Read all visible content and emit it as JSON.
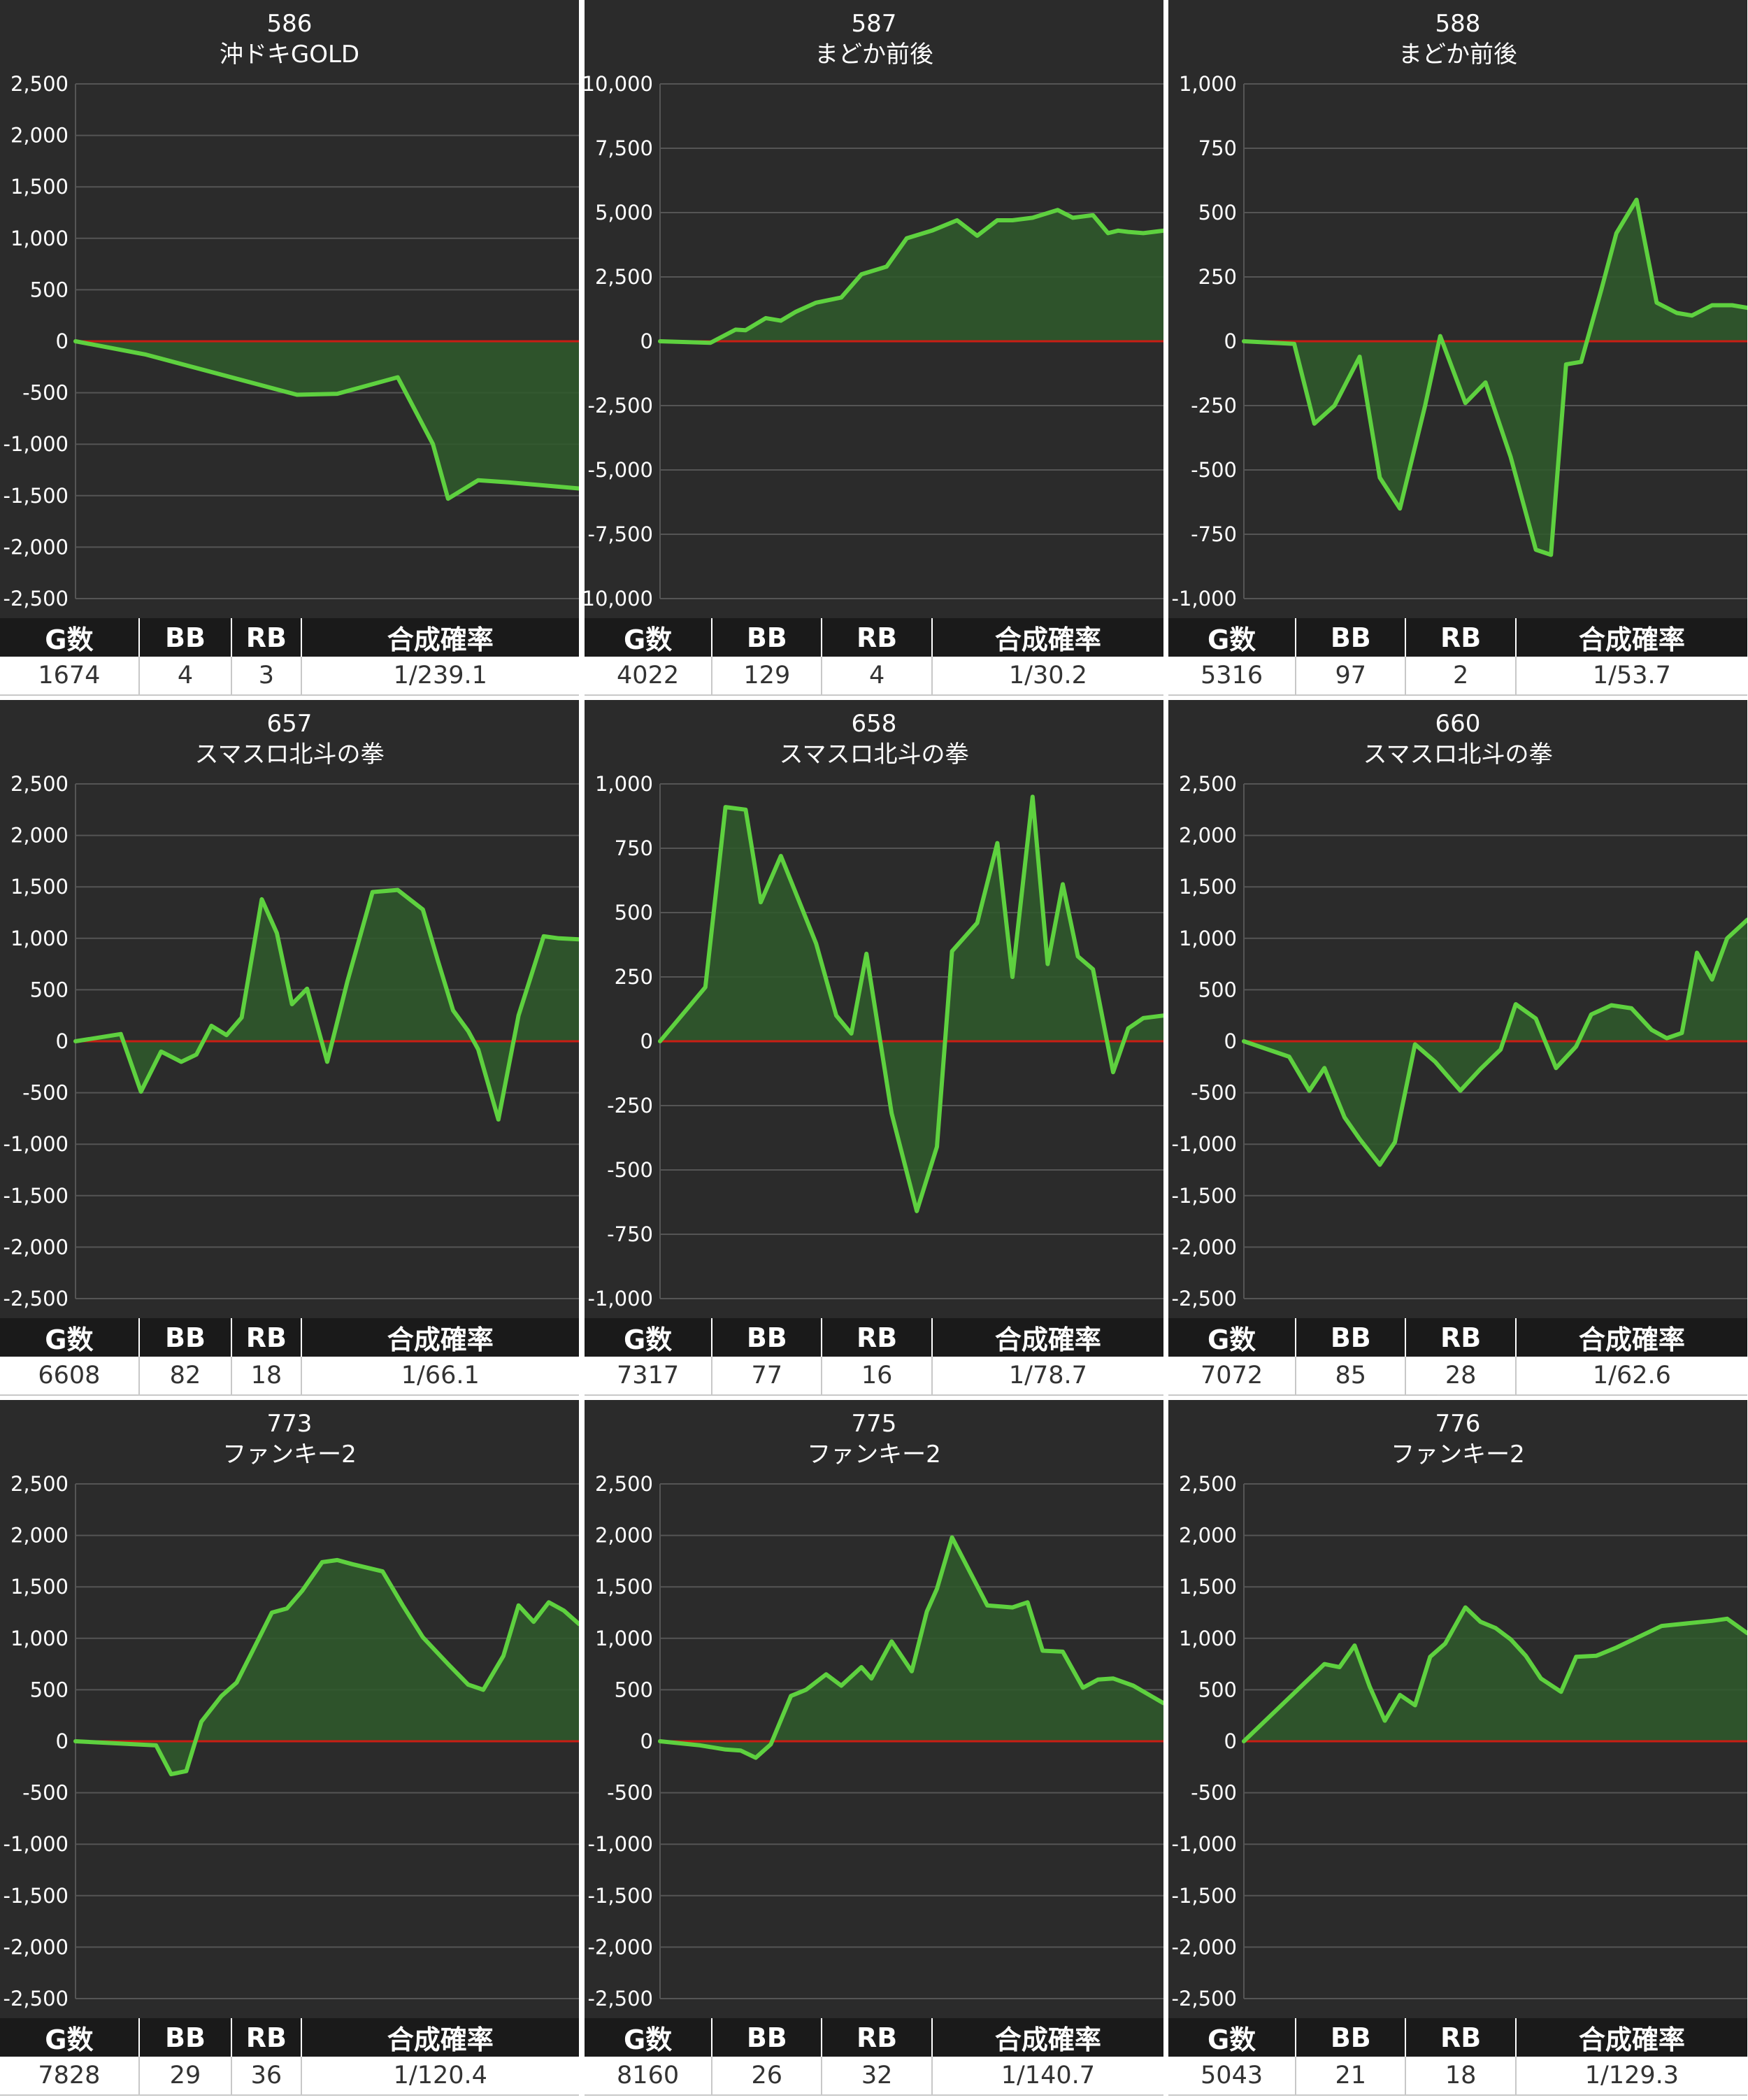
{
  "colors": {
    "panel_bg": "#2b2b2b",
    "header_bg": "#1a1a1a",
    "line": "#5ed13f",
    "fill": "#2f5a2c",
    "zero_line": "#c81e14",
    "grid": "#555555"
  },
  "stats_headers": [
    "G数",
    "BB",
    "RB",
    "合成確率"
  ],
  "chart_data": [
    {
      "type": "area",
      "title": "586",
      "subtitle": "沖ドキGOLD",
      "ylim": [
        -2500,
        2500
      ],
      "yticks": [
        "2,500",
        "2,000",
        "1,500",
        "1,000",
        "500",
        "0",
        "-500",
        "-1,000",
        "-1,500",
        "-2,000",
        "-2,500"
      ],
      "tick_step": 500,
      "grid": true,
      "xlabel": "",
      "ylabel": "",
      "x": [
        0,
        0.14,
        0.44,
        0.52,
        0.55,
        0.64,
        0.71,
        0.74,
        0.8,
        0.86,
        1.0
      ],
      "y": [
        0,
        -130,
        -520,
        -510,
        -470,
        -350,
        -1000,
        -1530,
        -1350,
        -1370,
        -1430
      ],
      "stats": {
        "g": "1674",
        "bb": "4",
        "rb": "3",
        "rate": "1/239.1"
      }
    },
    {
      "type": "area",
      "title": "587",
      "subtitle": "まどか前後",
      "ylim": [
        -10000,
        10000
      ],
      "yticks": [
        "10,000",
        "7,500",
        "5,000",
        "2,500",
        "0",
        "-2,500",
        "-5,000",
        "-7,500",
        "-10,000"
      ],
      "tick_step": 2500,
      "grid": true,
      "xlabel": "",
      "ylabel": "",
      "x": [
        0,
        0.1,
        0.15,
        0.17,
        0.21,
        0.24,
        0.27,
        0.31,
        0.36,
        0.4,
        0.45,
        0.49,
        0.54,
        0.59,
        0.63,
        0.67,
        0.7,
        0.74,
        0.79,
        0.82,
        0.86,
        0.89,
        0.91,
        0.93,
        0.96,
        1.0
      ],
      "y": [
        0,
        -60,
        450,
        430,
        900,
        800,
        1150,
        1500,
        1700,
        2600,
        2900,
        4000,
        4300,
        4700,
        4100,
        4700,
        4700,
        4800,
        5100,
        4800,
        4900,
        4200,
        4300,
        4250,
        4200,
        4300
      ],
      "stats": {
        "g": "4022",
        "bb": "129",
        "rb": "4",
        "rate": "1/30.2"
      }
    },
    {
      "type": "area",
      "title": "588",
      "subtitle": "まどか前後",
      "ylim": [
        -1000,
        1000
      ],
      "yticks": [
        "1,000",
        "750",
        "500",
        "250",
        "0",
        "-250",
        "-500",
        "-750",
        "-1,000"
      ],
      "tick_step": 250,
      "grid": true,
      "xlabel": "",
      "ylabel": "",
      "x": [
        0,
        0.1,
        0.14,
        0.18,
        0.23,
        0.27,
        0.31,
        0.36,
        0.39,
        0.44,
        0.48,
        0.53,
        0.58,
        0.61,
        0.64,
        0.67,
        0.71,
        0.74,
        0.78,
        0.82,
        0.86,
        0.89,
        0.93,
        0.97,
        1.0
      ],
      "y": [
        0,
        -10,
        -320,
        -250,
        -60,
        -530,
        -650,
        -250,
        20,
        -240,
        -160,
        -450,
        -810,
        -830,
        -90,
        -80,
        200,
        420,
        550,
        150,
        110,
        100,
        140,
        140,
        130
      ],
      "stats": {
        "g": "5316",
        "bb": "97",
        "rb": "2",
        "rate": "1/53.7"
      }
    },
    {
      "type": "area",
      "title": "657",
      "subtitle": "スマスロ北斗の拳",
      "ylim": [
        -2500,
        2500
      ],
      "yticks": [
        "2,500",
        "2,000",
        "1,500",
        "1,000",
        "500",
        "0",
        "-500",
        "-1,000",
        "-1,500",
        "-2,000",
        "-2,500"
      ],
      "tick_step": 500,
      "grid": true,
      "xlabel": "",
      "ylabel": "",
      "x": [
        0,
        0.09,
        0.13,
        0.17,
        0.21,
        0.24,
        0.27,
        0.3,
        0.33,
        0.37,
        0.4,
        0.43,
        0.46,
        0.5,
        0.54,
        0.59,
        0.64,
        0.69,
        0.72,
        0.75,
        0.78,
        0.8,
        0.84,
        0.88,
        0.93,
        0.96,
        1.0
      ],
      "y": [
        0,
        70,
        -490,
        -100,
        -200,
        -130,
        150,
        60,
        230,
        1380,
        1050,
        360,
        510,
        -200,
        580,
        1450,
        1470,
        1280,
        780,
        300,
        100,
        -80,
        -760,
        250,
        1020,
        1000,
        990
      ],
      "stats": {
        "g": "6608",
        "bb": "82",
        "rb": "18",
        "rate": "1/66.1"
      }
    },
    {
      "type": "area",
      "title": "658",
      "subtitle": "スマスロ北斗の拳",
      "ylim": [
        -1000,
        1000
      ],
      "yticks": [
        "1,000",
        "750",
        "500",
        "250",
        "0",
        "-250",
        "-500",
        "-750",
        "-1,000"
      ],
      "tick_step": 250,
      "grid": true,
      "xlabel": "",
      "ylabel": "",
      "x": [
        0,
        0.09,
        0.13,
        0.17,
        0.2,
        0.24,
        0.31,
        0.35,
        0.38,
        0.41,
        0.46,
        0.51,
        0.55,
        0.58,
        0.63,
        0.67,
        0.7,
        0.74,
        0.77,
        0.8,
        0.83,
        0.86,
        0.9,
        0.93,
        0.96,
        1.0
      ],
      "y": [
        0,
        210,
        910,
        900,
        540,
        720,
        380,
        100,
        30,
        340,
        -280,
        -660,
        -410,
        350,
        460,
        770,
        250,
        950,
        300,
        610,
        330,
        280,
        -120,
        50,
        90,
        100
      ],
      "stats": {
        "g": "7317",
        "bb": "77",
        "rb": "16",
        "rate": "1/78.7"
      }
    },
    {
      "type": "area",
      "title": "660",
      "subtitle": "スマスロ北斗の拳",
      "ylim": [
        -2500,
        2500
      ],
      "yticks": [
        "2,500",
        "2,000",
        "1,500",
        "1,000",
        "500",
        "0",
        "-500",
        "-1,000",
        "-1,500",
        "-2,000",
        "-2,500"
      ],
      "tick_step": 500,
      "grid": true,
      "xlabel": "",
      "ylabel": "",
      "x": [
        0,
        0.09,
        0.13,
        0.16,
        0.2,
        0.23,
        0.27,
        0.3,
        0.34,
        0.38,
        0.43,
        0.47,
        0.51,
        0.54,
        0.58,
        0.62,
        0.66,
        0.69,
        0.73,
        0.77,
        0.81,
        0.84,
        0.87,
        0.9,
        0.93,
        0.96,
        1.0
      ],
      "y": [
        0,
        -150,
        -480,
        -260,
        -740,
        -950,
        -1200,
        -980,
        -30,
        -200,
        -480,
        -270,
        -80,
        360,
        220,
        -260,
        -50,
        260,
        350,
        320,
        110,
        30,
        80,
        860,
        600,
        1000,
        1180
      ],
      "stats": {
        "g": "7072",
        "bb": "85",
        "rb": "28",
        "rate": "1/62.6"
      }
    },
    {
      "type": "area",
      "title": "773",
      "subtitle": "ファンキー2",
      "ylim": [
        -2500,
        2500
      ],
      "yticks": [
        "2,500",
        "2,000",
        "1,500",
        "1,000",
        "500",
        "0",
        "-500",
        "-1,000",
        "-1,500",
        "-2,000",
        "-2,500"
      ],
      "tick_step": 500,
      "grid": true,
      "xlabel": "",
      "ylabel": "",
      "x": [
        0,
        0.16,
        0.19,
        0.22,
        0.25,
        0.29,
        0.32,
        0.35,
        0.39,
        0.42,
        0.45,
        0.49,
        0.52,
        0.55,
        0.61,
        0.65,
        0.69,
        0.74,
        0.78,
        0.81,
        0.85,
        0.88,
        0.91,
        0.94,
        0.97,
        1.0
      ],
      "y": [
        0,
        -40,
        -320,
        -290,
        190,
        440,
        570,
        860,
        1250,
        1290,
        1460,
        1740,
        1760,
        1720,
        1650,
        1320,
        1010,
        750,
        550,
        500,
        830,
        1320,
        1160,
        1350,
        1270,
        1140
      ],
      "stats": {
        "g": "7828",
        "bb": "29",
        "rb": "36",
        "rate": "1/120.4"
      }
    },
    {
      "type": "area",
      "title": "775",
      "subtitle": "ファンキー2",
      "ylim": [
        -2500,
        2500
      ],
      "yticks": [
        "2,500",
        "2,000",
        "1,500",
        "1,000",
        "500",
        "0",
        "-500",
        "-1,000",
        "-1,500",
        "-2,000",
        "-2,500"
      ],
      "tick_step": 500,
      "grid": true,
      "xlabel": "",
      "ylabel": "",
      "x": [
        0,
        0.08,
        0.13,
        0.16,
        0.19,
        0.22,
        0.26,
        0.29,
        0.33,
        0.36,
        0.4,
        0.42,
        0.46,
        0.5,
        0.53,
        0.55,
        0.58,
        0.65,
        0.7,
        0.73,
        0.76,
        0.8,
        0.84,
        0.87,
        0.9,
        0.94,
        1.0
      ],
      "y": [
        0,
        -40,
        -80,
        -90,
        -160,
        -30,
        440,
        500,
        650,
        540,
        720,
        610,
        970,
        680,
        1260,
        1480,
        1980,
        1320,
        1300,
        1350,
        880,
        870,
        520,
        600,
        610,
        540,
        370
      ],
      "stats": {
        "g": "8160",
        "bb": "26",
        "rb": "32",
        "rate": "1/140.7"
      }
    },
    {
      "type": "area",
      "title": "776",
      "subtitle": "ファンキー2",
      "ylim": [
        -2500,
        2500
      ],
      "yticks": [
        "2,500",
        "2,000",
        "1,500",
        "1,000",
        "500",
        "0",
        "-500",
        "-1,000",
        "-1,500",
        "-2,000",
        "-2,500"
      ],
      "tick_step": 500,
      "grid": true,
      "xlabel": "",
      "ylabel": "",
      "x": [
        0,
        0.16,
        0.19,
        0.22,
        0.25,
        0.28,
        0.31,
        0.34,
        0.37,
        0.4,
        0.44,
        0.47,
        0.5,
        0.53,
        0.56,
        0.59,
        0.63,
        0.66,
        0.7,
        0.74,
        0.83,
        0.93,
        0.96,
        1.0
      ],
      "y": [
        0,
        750,
        720,
        930,
        530,
        200,
        450,
        350,
        820,
        950,
        1300,
        1160,
        1100,
        990,
        830,
        610,
        480,
        820,
        830,
        910,
        1120,
        1170,
        1190,
        1050
      ],
      "stats": {
        "g": "5043",
        "bb": "21",
        "rb": "18",
        "rate": "1/129.3"
      }
    }
  ]
}
